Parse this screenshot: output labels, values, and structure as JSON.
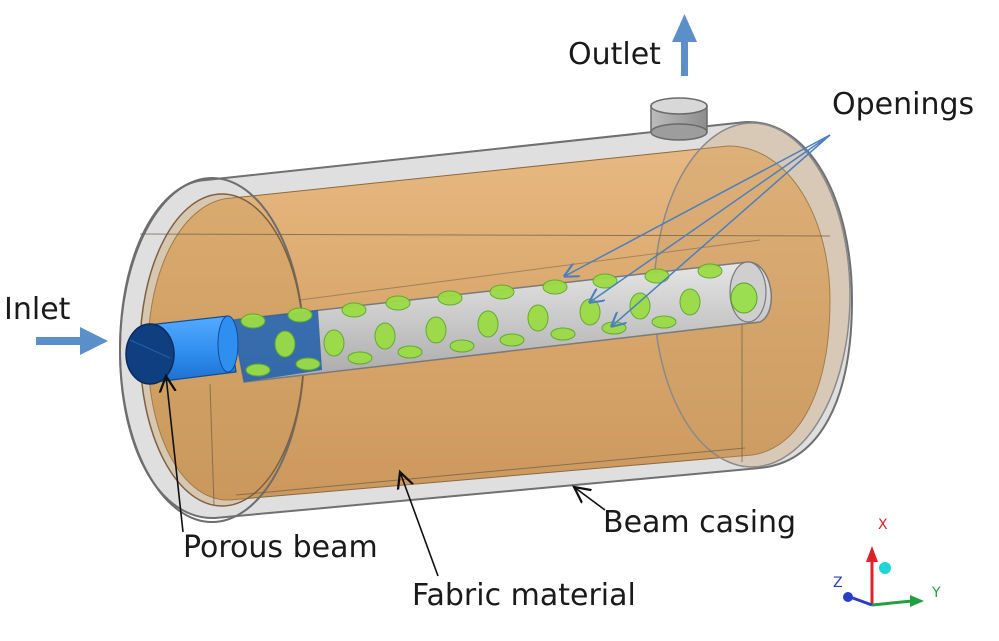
{
  "labels": {
    "outlet": "Outlet",
    "openings": "Openings",
    "inlet": "Inlet",
    "beam_casing": "Beam casing",
    "porous_beam": "Porous beam",
    "fabric_material": "Fabric material"
  },
  "triad": {
    "x": "X",
    "y": "Y",
    "z": "Z"
  },
  "colors": {
    "flow_arrow": "#5b8fc9",
    "casing_gray": "#9a9da0",
    "fabric": "#d9a35f",
    "inlet_pipe": "#2f8ff0",
    "openings_green": "#8fdc3a",
    "axis_x": "#e0202a",
    "axis_y": "#20a040",
    "axis_z": "#2a3cc8"
  }
}
